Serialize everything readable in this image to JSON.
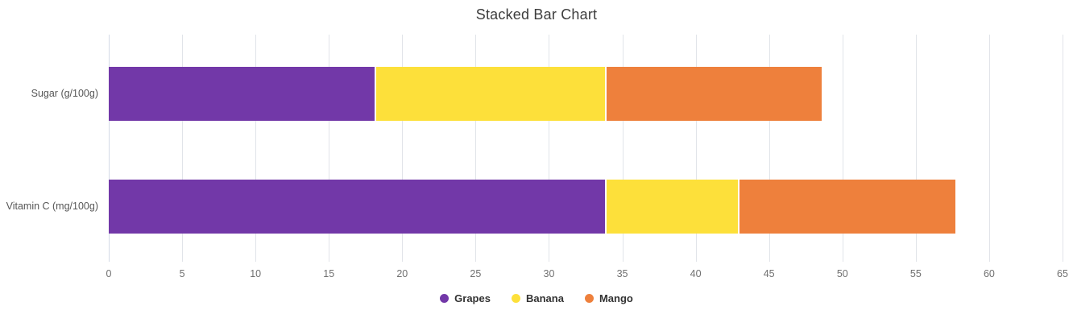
{
  "chart_data": {
    "type": "bar",
    "orientation": "horizontal",
    "stacked": true,
    "title": "Stacked Bar Chart",
    "categories": [
      "Sugar (g/100g)",
      "Vitamin C (mg/100g)"
    ],
    "series": [
      {
        "name": "Grapes",
        "color": "#7238A8",
        "values": [
          18.1,
          33.8
        ]
      },
      {
        "name": "Banana",
        "color": "#FDE03A",
        "values": [
          15.7,
          9.1
        ]
      },
      {
        "name": "Mango",
        "color": "#EE803C",
        "values": [
          14.8,
          14.8
        ]
      }
    ],
    "xlim": [
      0,
      65
    ],
    "xticks": [
      0,
      5,
      10,
      15,
      20,
      25,
      30,
      35,
      40,
      45,
      50,
      55,
      60,
      65
    ],
    "xlabel": "",
    "ylabel": "",
    "grid": true,
    "legend_position": "bottom-center",
    "legend_marker": "circle",
    "category_totals": [
      48.6,
      57.7
    ]
  },
  "colors": {
    "background": "#FFFFFF",
    "title_text": "#3D3D3D",
    "category_label_text": "#565656",
    "tick_label_text": "#707070",
    "gridline": "#E1E4E9",
    "axis_line": "#D5DBE6",
    "legend_text": "#333333"
  }
}
